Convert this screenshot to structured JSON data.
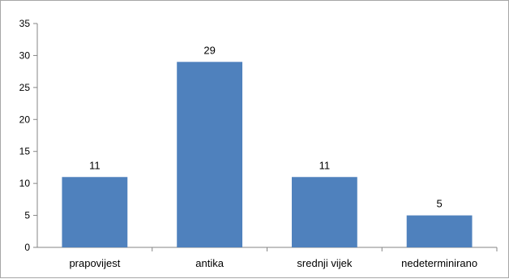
{
  "chart_data": {
    "type": "bar",
    "categories": [
      "prapovijest",
      "antika",
      "srednji vijek",
      "nedeterminirano"
    ],
    "values": [
      11,
      29,
      11,
      5
    ],
    "title": "",
    "xlabel": "",
    "ylabel": "",
    "ylim": [
      0,
      35
    ],
    "yticks": [
      0,
      5,
      10,
      15,
      20,
      25,
      30,
      35
    ],
    "grid": false,
    "legend": "none",
    "bar_color": "#4f81bd",
    "axis_color": "#868686"
  }
}
